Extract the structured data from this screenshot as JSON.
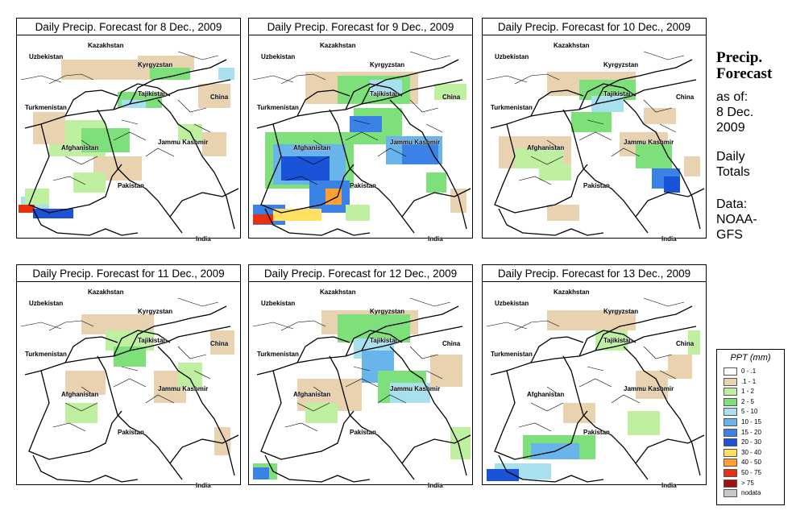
{
  "panels": [
    {
      "title": "Daily Precip. Forecast for  8 Dec., 2009"
    },
    {
      "title": "Daily Precip. Forecast for  9 Dec., 2009"
    },
    {
      "title": "Daily Precip. Forecast for  10 Dec., 2009"
    },
    {
      "title": "Daily Precip. Forecast for  11 Dec., 2009"
    },
    {
      "title": "Daily Precip. Forecast for  12 Dec., 2009"
    },
    {
      "title": "Daily Precip. Forecast for  13 Dec., 2009"
    }
  ],
  "map_labels": {
    "kazakhstan": "Kazakhstan",
    "uzbekistan": "Uzbekistan",
    "kyrgyzstan": "Kyrgyzstan",
    "tajikistan": "Tajikistan",
    "turkmenistan": "Turkmenistan",
    "china": "China",
    "jammu_kashmir": "Jammu Kashmir",
    "afghanistan": "Afghanistan",
    "pakistan": "Pakistan",
    "india": "India"
  },
  "side_panel": {
    "title_line1": "Precip.",
    "title_line2": "Forecast",
    "asof_line1": "as of:",
    "asof_line2": "8 Dec.",
    "asof_line3": "2009",
    "totals_line1": "Daily",
    "totals_line2": "Totals",
    "data_line1": "Data:",
    "data_line2": "NOAA-",
    "data_line3": "GFS"
  },
  "legend": {
    "title": "PPT (mm)",
    "items": [
      {
        "label": "0 - .1",
        "color": "#ffffff"
      },
      {
        "label": ".1 - 1",
        "color": "#e8d2b0"
      },
      {
        "label": "1 - 2",
        "color": "#bff0a0"
      },
      {
        "label": "2 - 5",
        "color": "#7ee07a"
      },
      {
        "label": "5 - 10",
        "color": "#a8e0f0"
      },
      {
        "label": "10 - 15",
        "color": "#6ab4ec"
      },
      {
        "label": "15 - 20",
        "color": "#3a82e6"
      },
      {
        "label": "20 - 30",
        "color": "#1a52d8"
      },
      {
        "label": "30 - 40",
        "color": "#ffe060"
      },
      {
        "label": "40 - 50",
        "color": "#ffa030"
      },
      {
        "label": "50 - 75",
        "color": "#e83010"
      },
      {
        "label": "> 75",
        "color": "#a01010"
      },
      {
        "label": "nodata",
        "color": "#c8c8c8"
      }
    ]
  }
}
